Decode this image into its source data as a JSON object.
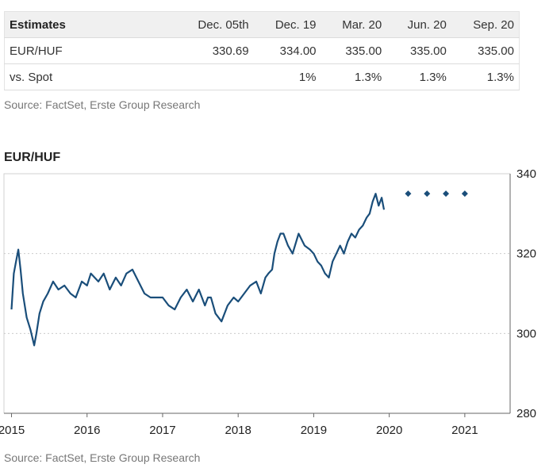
{
  "estimates_table": {
    "header": [
      "Estimates",
      "Dec. 05th",
      "Dec. 19",
      "Mar. 20",
      "Jun. 20",
      "Sep. 20"
    ],
    "rows": [
      {
        "label": "EUR/HUF",
        "values": [
          "330.69",
          "334.00",
          "335.00",
          "335.00",
          "335.00"
        ]
      },
      {
        "label": "vs. Spot",
        "values": [
          "",
          "1%",
          "1.3%",
          "1.3%",
          "1.3%"
        ]
      }
    ]
  },
  "table_source": "Source: FactSet, Erste Group Research",
  "chart_source": "Source: FactSet, Erste Group Research",
  "colors": {
    "line": "#1a4e7a",
    "forecast": "#1a4e7a",
    "grid": "#cccccc",
    "frame": "#d0d0d0"
  },
  "chart_data": {
    "type": "line",
    "title": "EUR/HUF",
    "xlabel": "",
    "ylabel": "",
    "ylim": [
      280,
      340
    ],
    "xlim": [
      2014.9,
      2021.6
    ],
    "y_ticks": [
      280,
      300,
      320,
      340
    ],
    "x_ticks": [
      {
        "value": 2015,
        "label": "2015"
      },
      {
        "value": 2016,
        "label": "2016"
      },
      {
        "value": 2017,
        "label": "2017"
      },
      {
        "value": 2018,
        "label": "2018"
      },
      {
        "value": 2019,
        "label": "2019"
      },
      {
        "value": 2020,
        "label": "2020"
      },
      {
        "value": 2021,
        "label": "2021"
      }
    ],
    "grid": true,
    "y_axis_position": "right",
    "series": [
      {
        "x": [
          2015.0,
          2015.03,
          2015.06,
          2015.09,
          2015.12,
          2015.15,
          2015.2,
          2015.25,
          2015.3,
          2015.33,
          2015.37,
          2015.42,
          2015.48,
          2015.55,
          2015.62,
          2015.7,
          2015.78,
          2015.85,
          2015.93,
          2016.0,
          2016.05,
          2016.1,
          2016.15,
          2016.22,
          2016.3,
          2016.38,
          2016.45,
          2016.52,
          2016.6,
          2016.68,
          2016.76,
          2016.84,
          2016.92,
          2017.0,
          2017.08,
          2017.16,
          2017.24,
          2017.32,
          2017.4,
          2017.48,
          2017.56,
          2017.6,
          2017.64,
          2017.7,
          2017.78,
          2017.86,
          2017.94,
          2018.0,
          2018.08,
          2018.16,
          2018.24,
          2018.3,
          2018.36,
          2018.4,
          2018.45,
          2018.48,
          2018.52,
          2018.56,
          2018.6,
          2018.66,
          2018.72,
          2018.8,
          2018.88,
          2018.95,
          2019.0,
          2019.05,
          2019.1,
          2019.15,
          2019.2,
          2019.25,
          2019.3,
          2019.35,
          2019.4,
          2019.45,
          2019.5,
          2019.55,
          2019.6,
          2019.65,
          2019.7,
          2019.74,
          2019.78,
          2019.82,
          2019.86,
          2019.9,
          2019.93
        ],
        "y": [
          306,
          315,
          318,
          321,
          316,
          310,
          304,
          301,
          297,
          300,
          305,
          308,
          310,
          313,
          311,
          312,
          310,
          309,
          313,
          312,
          315,
          314,
          313,
          315,
          311,
          314,
          312,
          315,
          316,
          313,
          310,
          309,
          309,
          309,
          307,
          306,
          309,
          311,
          308,
          311,
          307,
          309,
          309,
          305,
          303,
          307,
          309,
          308,
          310,
          312,
          313,
          310,
          314,
          315,
          316,
          320,
          323,
          325,
          325,
          322,
          320,
          325,
          322,
          321,
          320,
          318,
          317,
          315,
          314,
          318,
          320,
          322,
          320,
          323,
          325,
          324,
          326,
          327,
          329,
          330,
          333,
          335,
          332,
          334,
          331
        ]
      }
    ],
    "forecast": {
      "x": [
        2020.25,
        2020.5,
        2020.75,
        2021.0
      ],
      "y": [
        335.0,
        335.0,
        335.0,
        335.0
      ]
    }
  }
}
